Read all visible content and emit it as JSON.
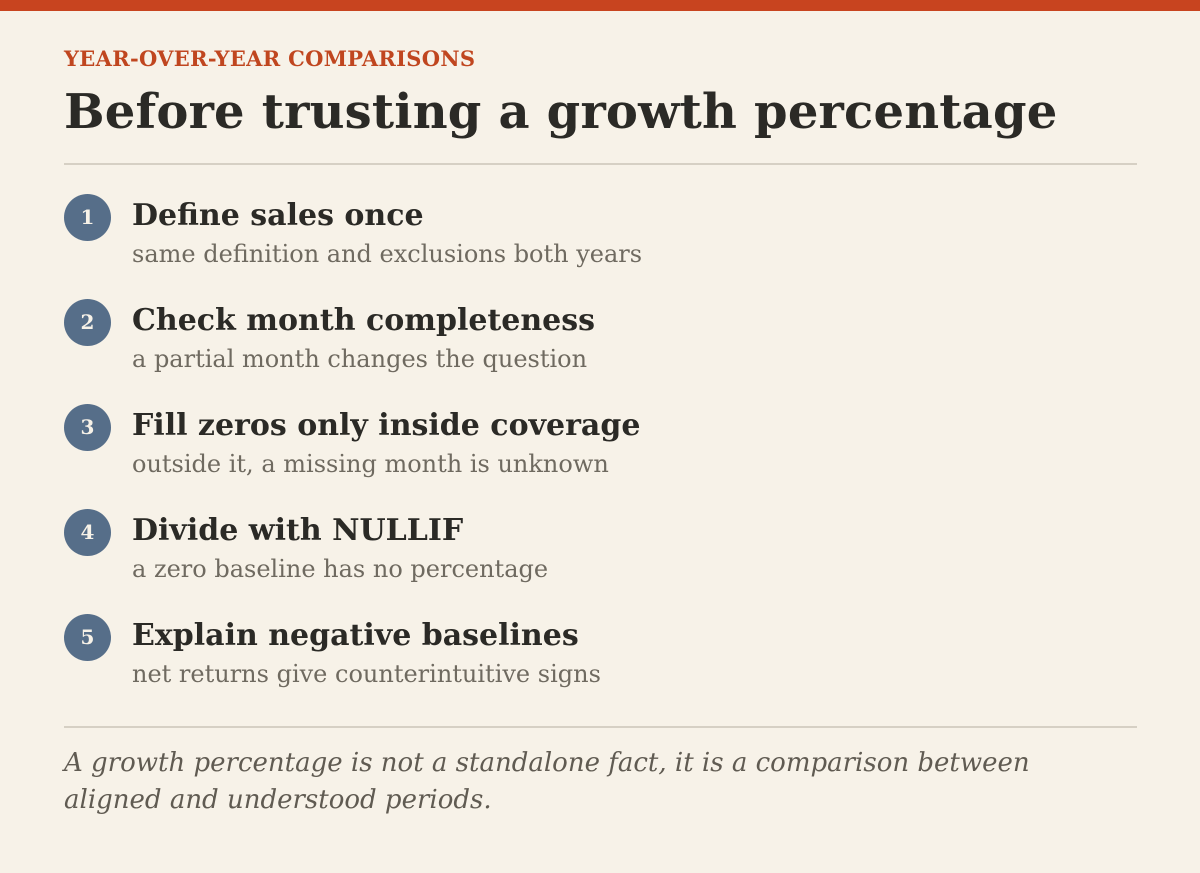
{
  "header": {
    "eyebrow": "YEAR-OVER-YEAR COMPARISONS",
    "title": "Before trusting a growth percentage"
  },
  "checklist": [
    {
      "number": "1",
      "title": "Define sales once",
      "subtitle": "same definition and exclusions both years"
    },
    {
      "number": "2",
      "title": "Check month completeness",
      "subtitle": "a partial month changes the question"
    },
    {
      "number": "3",
      "title": "Fill zeros only inside coverage",
      "subtitle": "outside it, a missing month is unknown"
    },
    {
      "number": "4",
      "title": "Divide with NULLIF",
      "subtitle": "a zero baseline has no percentage"
    },
    {
      "number": "5",
      "title": "Explain negative baselines",
      "subtitle": "net returns give counterintuitive signs"
    }
  ],
  "footer": {
    "note": "A growth percentage is not a standalone fact, it is a comparison between aligned and understood periods."
  },
  "colors": {
    "accent": "#c8441f",
    "badge": "#566e89",
    "background": "#f7f2e8"
  }
}
